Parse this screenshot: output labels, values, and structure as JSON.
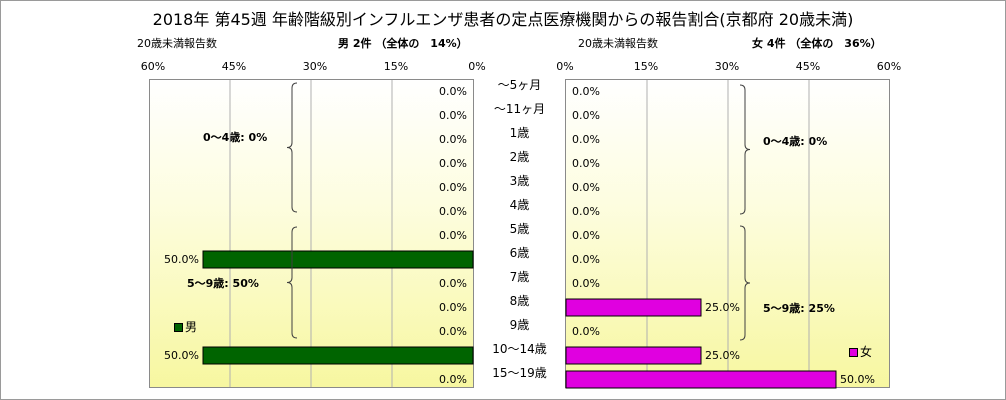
{
  "title": "2018年 第45週 年齢階級別インフルエンザ患者の定点医療機関からの報告割合(京都府 20歳未満)",
  "left_header": {
    "caption": "20歳未満報告数",
    "summary": "男 2件 （全体の　14%）"
  },
  "right_header": {
    "caption": "20歳未満報告数",
    "summary": "女 4件 （全体の　36%）"
  },
  "chart_data": {
    "type": "bar",
    "orientation": "horizontal",
    "layout": "population-pyramid",
    "categories": [
      "〜5ヶ月",
      "〜11ヶ月",
      "1歳",
      "2歳",
      "3歳",
      "4歳",
      "5歳",
      "6歳",
      "7歳",
      "8歳",
      "9歳",
      "10〜14歳",
      "15〜19歳"
    ],
    "series": [
      {
        "name": "男",
        "color": "#006400",
        "values": [
          0,
          0,
          0,
          0,
          0,
          0,
          0,
          50,
          0,
          0,
          0,
          50,
          0
        ],
        "labels": [
          "0.0%",
          "0.0%",
          "0.0%",
          "0.0%",
          "0.0%",
          "0.0%",
          "0.0%",
          "50.0%",
          "0.0%",
          "0.0%",
          "0.0%",
          "50.0%",
          "0.0%"
        ]
      },
      {
        "name": "女",
        "color": "#e000e0",
        "values": [
          0,
          0,
          0,
          0,
          0,
          0,
          0,
          0,
          0,
          25,
          0,
          25,
          50
        ],
        "labels": [
          "0.0%",
          "0.0%",
          "0.0%",
          "0.0%",
          "0.0%",
          "0.0%",
          "0.0%",
          "0.0%",
          "0.0%",
          "25.0%",
          "0.0%",
          "25.0%",
          "50.0%"
        ]
      }
    ],
    "xlim": [
      0,
      60
    ],
    "x_ticks_left": [
      "60%",
      "45%",
      "30%",
      "15%",
      "0%"
    ],
    "x_ticks_right": [
      "0%",
      "15%",
      "30%",
      "45%",
      "60%"
    ],
    "group_labels": {
      "left": [
        "0〜4歳: 0%",
        "5〜9歳: 50%"
      ],
      "right": [
        "0〜4歳: 0%",
        "5〜9歳: 25%"
      ]
    },
    "grid": true,
    "legend": {
      "male": "男",
      "female": "女"
    },
    "legend_placement": {
      "male": "bottom-left",
      "female": "bottom-right"
    }
  }
}
